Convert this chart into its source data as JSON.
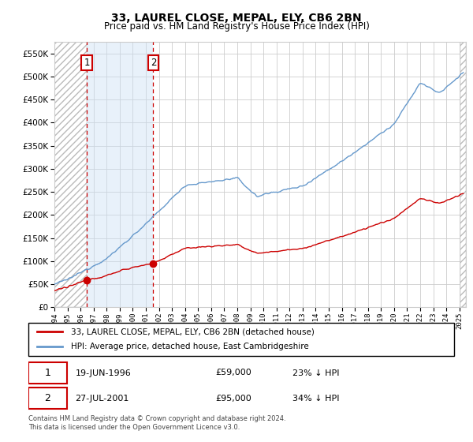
{
  "title": "33, LAUREL CLOSE, MEPAL, ELY, CB6 2BN",
  "subtitle": "Price paid vs. HM Land Registry's House Price Index (HPI)",
  "sale1_date": 1996.47,
  "sale1_price": 59000,
  "sale1_label": "19-JUN-1996",
  "sale2_date": 2001.57,
  "sale2_price": 95000,
  "sale2_label": "27-JUL-2001",
  "legend_red": "33, LAUREL CLOSE, MEPAL, ELY, CB6 2BN (detached house)",
  "legend_blue": "HPI: Average price, detached house, East Cambridgeshire",
  "table_row1": [
    "1",
    "19-JUN-1996",
    "£59,000",
    "23% ↓ HPI"
  ],
  "table_row2": [
    "2",
    "27-JUL-2001",
    "£95,000",
    "34% ↓ HPI"
  ],
  "footer": "Contains HM Land Registry data © Crown copyright and database right 2024.\nThis data is licensed under the Open Government Licence v3.0.",
  "ylim_max": 575000,
  "xlim_start": 1994.0,
  "xlim_end": 2025.5,
  "red_color": "#cc0000",
  "blue_color": "#6699cc",
  "shade_color": "#cce0f5"
}
